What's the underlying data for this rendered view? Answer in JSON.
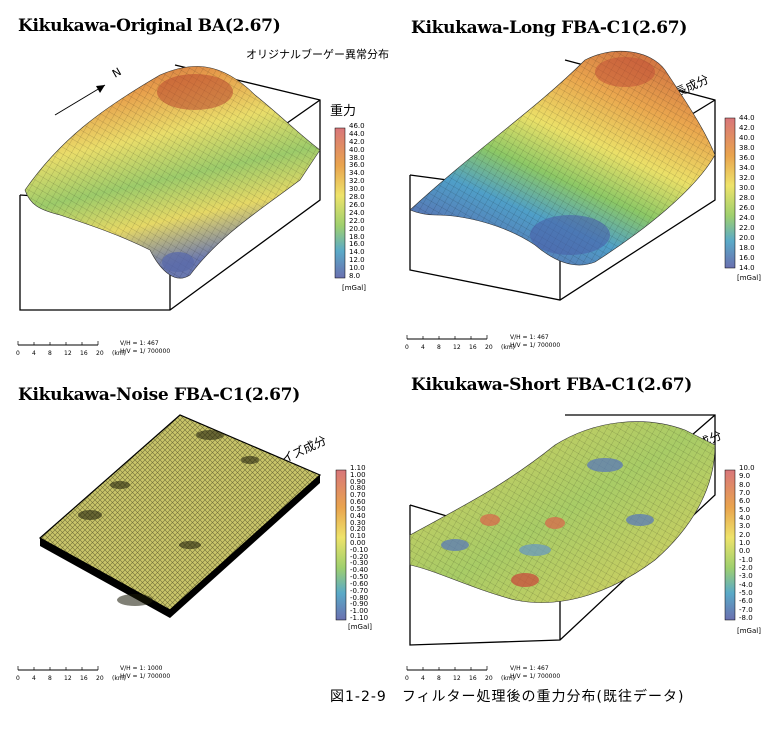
{
  "panels": [
    {
      "title": "Kikukawa-Original BA(2.67)",
      "label_jp": "オリジナルブーゲー異常分布",
      "label_jp2": "重力",
      "north": "N",
      "ticks": [
        "46.0",
        "44.0",
        "42.0",
        "40.0",
        "38.0",
        "36.0",
        "34.0",
        "32.0",
        "30.0",
        "28.0",
        "26.0",
        "24.0",
        "22.0",
        "20.0",
        "18.0",
        "16.0",
        "14.0",
        "12.0",
        "10.0",
        "8.0"
      ],
      "unit": "[mGal]",
      "scale_nums": [
        "0",
        "4",
        "8",
        "12",
        "16",
        "20",
        "(km)"
      ],
      "vh1": "V/H = 1:      467",
      "vh2": "H/V = 1/  700000"
    },
    {
      "title": "Kikukawa-Long FBA-C1(2.67)",
      "label_jp": "長波長成分",
      "ticks": [
        "44.0",
        "42.0",
        "40.0",
        "38.0",
        "36.0",
        "34.0",
        "32.0",
        "30.0",
        "28.0",
        "26.0",
        "24.0",
        "22.0",
        "20.0",
        "18.0",
        "16.0",
        "14.0"
      ],
      "unit": "[mGal]",
      "scale_nums": [
        "0",
        "4",
        "8",
        "12",
        "16",
        "20",
        "(km)"
      ],
      "vh1": "V/H = 1:      467",
      "vh2": "H/V = 1/  700000"
    },
    {
      "title": "Kikukawa-Noise FBA-C1(2.67)",
      "label_jp": "ノイズ成分",
      "ticks": [
        "1.10",
        "1.00",
        "0.90",
        "0.80",
        "0.70",
        "0.60",
        "0.50",
        "0.40",
        "0.30",
        "0.20",
        "0.10",
        "0.00",
        "-0.10",
        "-0.20",
        "-0.30",
        "-0.40",
        "-0.50",
        "-0.60",
        "-0.70",
        "-0.80",
        "-0.90",
        "-1.00",
        "-1.10"
      ],
      "unit": "[mGal]",
      "scale_nums": [
        "0",
        "4",
        "8",
        "12",
        "16",
        "20",
        "(km)"
      ],
      "vh1": "V/H = 1:     1000",
      "vh2": "H/V = 1/  700000"
    },
    {
      "title": "Kikukawa-Short FBA-C1(2.67)",
      "label_jp": "短波長成分",
      "ticks": [
        "10.0",
        "9.0",
        "8.0",
        "7.0",
        "6.0",
        "5.0",
        "4.0",
        "3.0",
        "2.0",
        "1.0",
        "0.0",
        "-1.0",
        "-2.0",
        "-3.0",
        "-4.0",
        "-5.0",
        "-6.0",
        "-7.0",
        "-8.0"
      ],
      "unit": "[mGal]",
      "scale_nums": [
        "0",
        "4",
        "8",
        "12",
        "16",
        "20",
        "(km)"
      ],
      "vh1": "V/H = 1:      467",
      "vh2": "H/V = 1/  700000"
    }
  ],
  "caption": "図1-2-9　フィルター処理後の重力分布(既往データ)"
}
